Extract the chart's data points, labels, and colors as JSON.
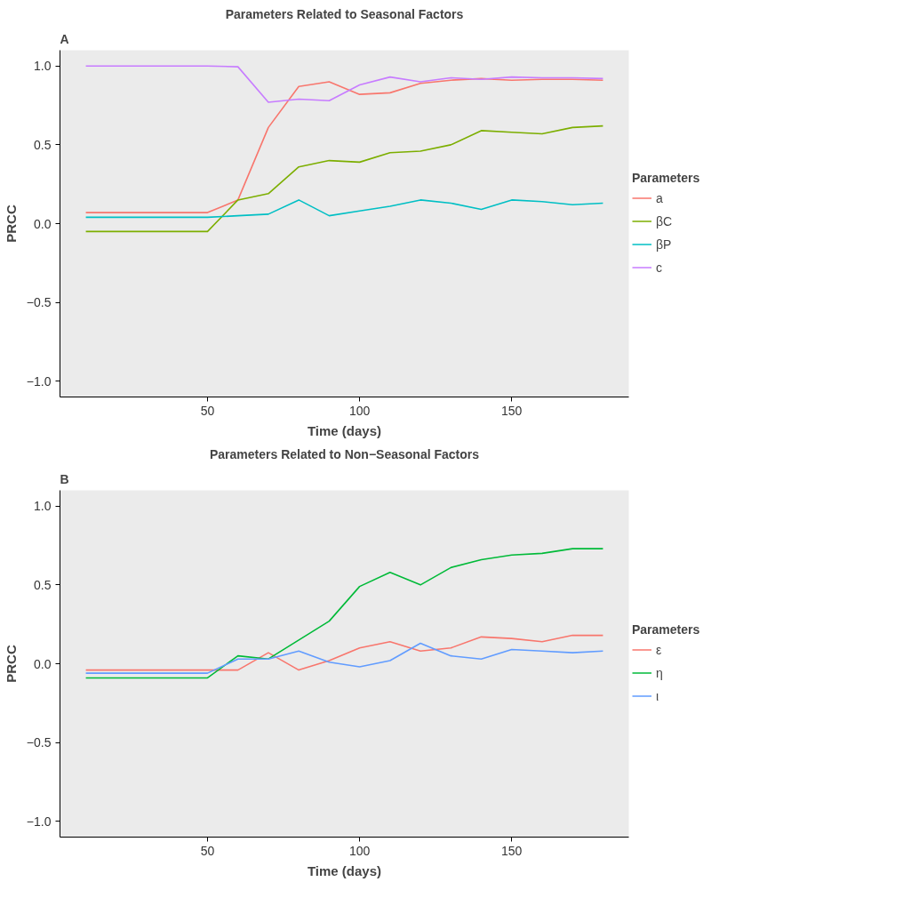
{
  "chart_data": [
    {
      "type": "line",
      "title": "Parameters Related to Seasonal Factors",
      "xlabel": "Time (days)",
      "ylabel": "PRCC",
      "legend_title": "Parameters",
      "legend": "right",
      "grid": false,
      "annotations": [
        "A"
      ],
      "x": [
        10,
        50,
        60,
        70,
        80,
        90,
        100,
        110,
        120,
        130,
        140,
        150,
        160,
        170,
        180
      ],
      "xlim": [
        1.5,
        188.5
      ],
      "xticks": [
        50,
        100,
        150
      ],
      "ylim": [
        -1.1,
        1.1
      ],
      "yticks": [
        {
          "value": -1.0,
          "label": "−1.0"
        },
        {
          "value": -0.5,
          "label": "−0.5"
        },
        {
          "value": 0.0,
          "label": "0.0"
        },
        {
          "value": 0.5,
          "label": "0.5"
        },
        {
          "value": 1.0,
          "label": "1.0"
        }
      ],
      "series": [
        {
          "name": "a",
          "color": "#f8766d",
          "values": [
            0.07,
            0.07,
            0.15,
            0.61,
            0.87,
            0.9,
            0.82,
            0.83,
            0.89,
            0.91,
            0.92,
            0.91,
            0.915,
            0.915,
            0.91
          ]
        },
        {
          "name": "βC",
          "color": "#7cae00",
          "values": [
            -0.05,
            -0.05,
            0.15,
            0.19,
            0.36,
            0.4,
            0.39,
            0.45,
            0.46,
            0.5,
            0.59,
            0.58,
            0.57,
            0.61,
            0.62
          ]
        },
        {
          "name": "βP",
          "color": "#00bfc4",
          "values": [
            0.04,
            0.04,
            0.05,
            0.06,
            0.15,
            0.05,
            0.08,
            0.11,
            0.15,
            0.13,
            0.09,
            0.15,
            0.14,
            0.12,
            0.13
          ]
        },
        {
          "name": "c",
          "color": "#c77cff",
          "values": [
            1.0,
            1.0,
            0.995,
            0.77,
            0.79,
            0.78,
            0.88,
            0.93,
            0.9,
            0.925,
            0.915,
            0.93,
            0.925,
            0.925,
            0.92
          ]
        }
      ]
    },
    {
      "type": "line",
      "title": "Parameters Related to Non−Seasonal Factors",
      "xlabel": "Time (days)",
      "ylabel": "PRCC",
      "legend_title": "Parameters",
      "legend": "right",
      "grid": false,
      "annotations": [
        "B"
      ],
      "x": [
        10,
        50,
        60,
        70,
        80,
        90,
        100,
        110,
        120,
        130,
        140,
        150,
        160,
        170,
        180
      ],
      "xlim": [
        1.5,
        188.5
      ],
      "xticks": [
        50,
        100,
        150
      ],
      "ylim": [
        -1.1,
        1.1
      ],
      "yticks": [
        {
          "value": -1.0,
          "label": "−1.0"
        },
        {
          "value": -0.5,
          "label": "−0.5"
        },
        {
          "value": 0.0,
          "label": "0.0"
        },
        {
          "value": 0.5,
          "label": "0.5"
        },
        {
          "value": 1.0,
          "label": "1.0"
        }
      ],
      "series": [
        {
          "name": "ε",
          "color": "#f8766d",
          "values": [
            -0.04,
            -0.04,
            -0.04,
            0.07,
            -0.04,
            0.02,
            0.1,
            0.14,
            0.08,
            0.1,
            0.17,
            0.16,
            0.14,
            0.18,
            0.18
          ]
        },
        {
          "name": "η",
          "color": "#00ba38",
          "values": [
            -0.09,
            -0.09,
            0.05,
            0.03,
            0.15,
            0.27,
            0.49,
            0.58,
            0.5,
            0.61,
            0.66,
            0.69,
            0.7,
            0.73,
            0.73
          ]
        },
        {
          "name": "ι",
          "color": "#619cff",
          "values": [
            -0.06,
            -0.06,
            0.03,
            0.03,
            0.08,
            0.01,
            -0.02,
            0.02,
            0.13,
            0.05,
            0.03,
            0.09,
            0.08,
            0.07,
            0.08
          ]
        }
      ]
    }
  ]
}
